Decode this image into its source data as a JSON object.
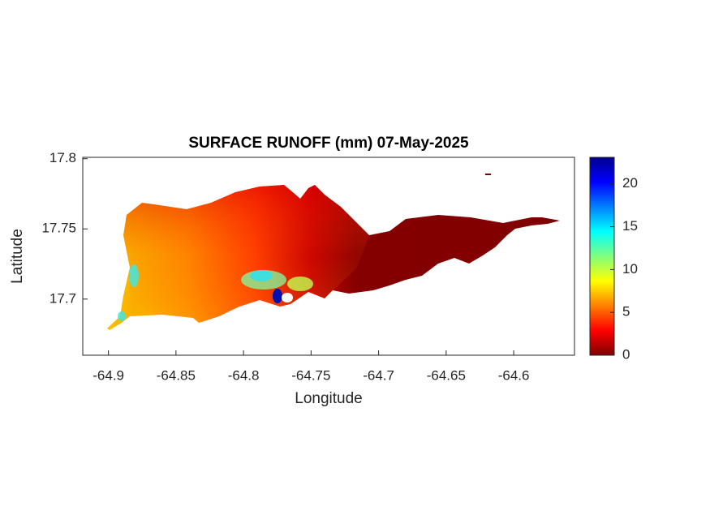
{
  "chart_data": {
    "type": "map",
    "title": "SURFACE RUNOFF (mm) 07-May-2025",
    "x_label": "Longitude",
    "y_label": "Latitude",
    "xlim": [
      -64.919,
      -64.555
    ],
    "xticks": [
      -64.9,
      -64.85,
      -64.8,
      -64.75,
      -64.7,
      -64.65,
      -64.6
    ],
    "ylim": [
      17.66,
      17.801
    ],
    "yticks": [
      17.7,
      17.75,
      17.8
    ],
    "colorbar": {
      "lim": [
        0,
        23.1
      ],
      "ticks": [
        0,
        5,
        10,
        15,
        20
      ]
    }
  }
}
